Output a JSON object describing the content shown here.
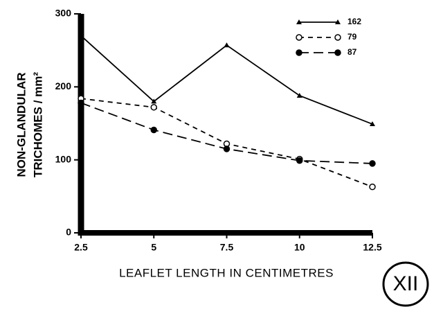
{
  "chart_data": {
    "type": "line",
    "x_label": "LEAFLET LENGTH IN CENTIMETRES",
    "y_label": [
      "NON-GLANDULAR",
      "TRICHOMES / mm²"
    ],
    "annotation": "XII",
    "x": [
      2.5,
      5,
      7.5,
      10,
      12.5
    ],
    "series": [
      {
        "name": "162",
        "color": "#000000",
        "dash": "solid",
        "marker": "triangle",
        "values": [
          270,
          180,
          257,
          188,
          149
        ]
      },
      {
        "name": "79",
        "color": "#000000",
        "dash": "short",
        "marker": "open-circle",
        "values": [
          184,
          172,
          122,
          101,
          63
        ]
      },
      {
        "name": "87",
        "color": "#000000",
        "dash": "long",
        "marker": "filled-circle",
        "values": [
          178,
          141,
          115,
          99,
          95
        ]
      }
    ],
    "xlim": [
      2.5,
      12.5
    ],
    "xticks": [
      2.5,
      5,
      7.5,
      10,
      12.5
    ],
    "ylim": [
      0,
      300
    ],
    "yticks": [
      0,
      100,
      200,
      300
    ],
    "legend": "top-right"
  }
}
